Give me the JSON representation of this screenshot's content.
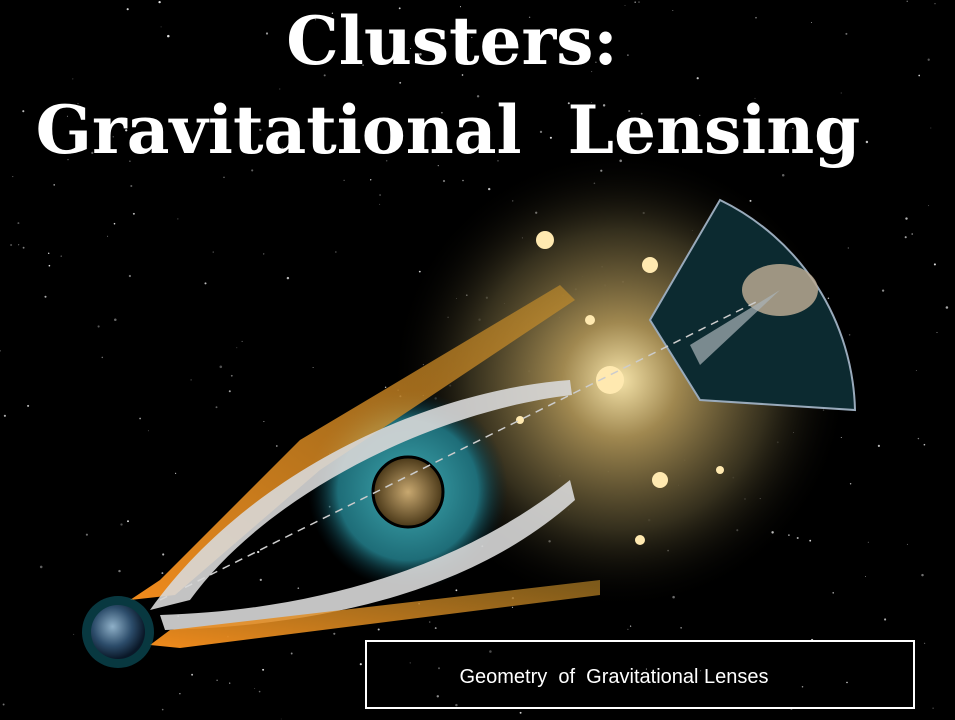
{
  "header": {
    "title_lines": [
      "Clusters:",
      "Gravitational  Lensing"
    ]
  },
  "caption": "Geometry  of  Gravitational Lenses"
}
